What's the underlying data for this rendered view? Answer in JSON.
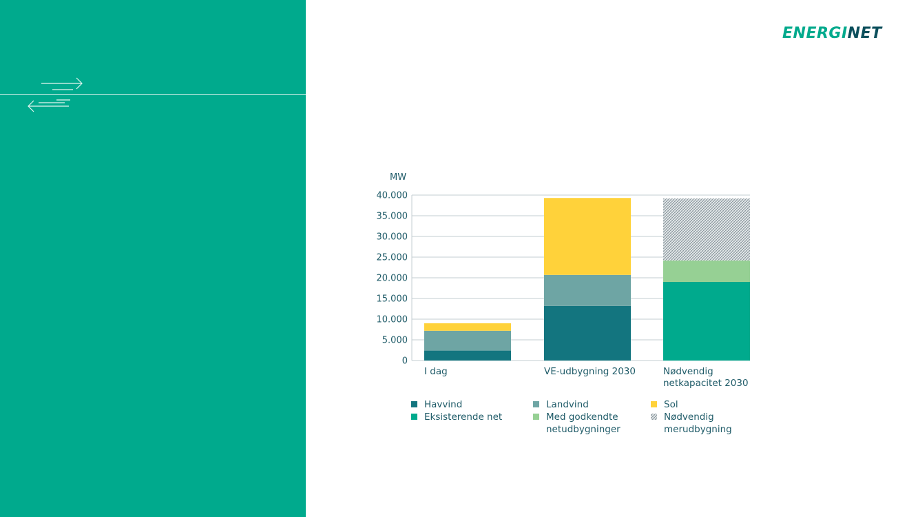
{
  "brand": {
    "logo_prefix": "ENERGI",
    "logo_suffix": "NET",
    "panel_color": "#00aa8d",
    "icon": "exchange-arrows-icon"
  },
  "chart_data": {
    "type": "bar",
    "stacked": true,
    "ylabel": "MW",
    "ylim": [
      0,
      40000
    ],
    "yticks": [
      0,
      5000,
      10000,
      15000,
      20000,
      25000,
      30000,
      35000,
      40000
    ],
    "ytick_labels": [
      "0",
      "5.000",
      "10.000",
      "15.000",
      "20.000",
      "25.000",
      "30.000",
      "35.000",
      "40.000"
    ],
    "grid": true,
    "legend_position": "bottom",
    "categories": [
      {
        "lines": [
          "I dag"
        ]
      },
      {
        "lines": [
          "VE-udbygning 2030"
        ]
      },
      {
        "lines": [
          "Nødvendig",
          "netkapacitet 2030"
        ]
      }
    ],
    "series": [
      {
        "name": [
          "Havvind"
        ],
        "color": "#13757f",
        "values": [
          2400,
          13200,
          0
        ]
      },
      {
        "name": [
          "Landvind"
        ],
        "color": "#6ea5a4",
        "values": [
          4800,
          7500,
          0
        ]
      },
      {
        "name": [
          "Sol"
        ],
        "color": "#ffd23a",
        "values": [
          1800,
          18600,
          0
        ]
      },
      {
        "name": [
          "Eksisterende net"
        ],
        "color": "#00aa8d",
        "values": [
          0,
          0,
          19000
        ]
      },
      {
        "name": [
          "Med godkendte",
          "netudbygninger"
        ],
        "color": "#96d094",
        "values": [
          0,
          0,
          5200
        ]
      },
      {
        "name": [
          "Nødvendig",
          "merudbygning"
        ],
        "color": "#c8cfd3",
        "pattern": "hatch",
        "values": [
          0,
          0,
          15000
        ]
      }
    ]
  }
}
